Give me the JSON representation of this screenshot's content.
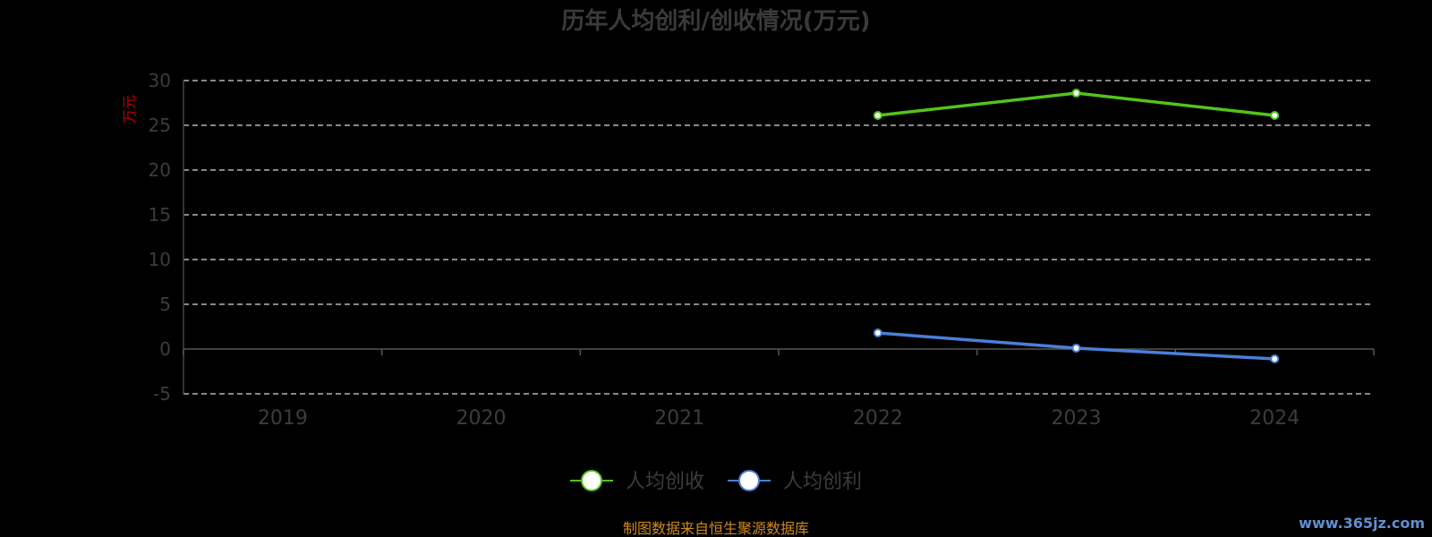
{
  "source_note": "制图数据来自恒生聚源数据库",
  "watermark": "www.365jz.com",
  "chart_data": {
    "type": "line",
    "title": "历年人均创利/创收情况(万元)",
    "ylabel": "万元",
    "x": [
      "2019",
      "2020",
      "2021",
      "2022",
      "2023",
      "2024"
    ],
    "ylim": [
      -5,
      30
    ],
    "yticks": [
      30,
      25,
      20,
      15,
      10,
      5,
      0,
      -5
    ],
    "grid": true,
    "legend_position": "bottom",
    "series": [
      {
        "name": "人均创收",
        "color": "#52c41a",
        "values": [
          null,
          null,
          null,
          26.1,
          28.6,
          26.1
        ]
      },
      {
        "name": "人均创利",
        "color": "#4a7fd8",
        "values": [
          null,
          null,
          null,
          1.8,
          0.1,
          -1.1
        ]
      }
    ]
  }
}
